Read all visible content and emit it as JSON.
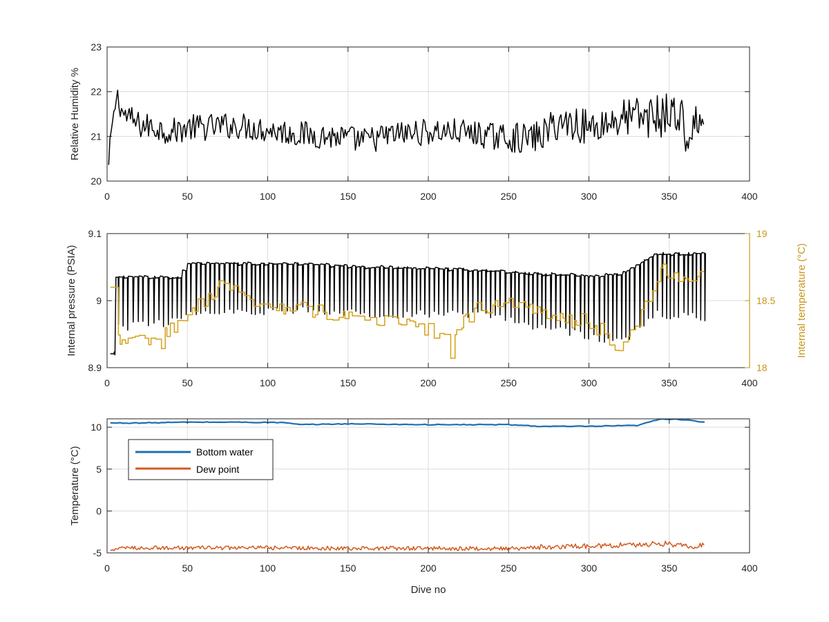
{
  "colors": {
    "black": "#000000",
    "internal_temperature": "#D4A017",
    "bottom_water": "#1F6FB0",
    "dew_point": "#D05A1E",
    "axis": "#262626",
    "grid": "#DCDCDC"
  },
  "chart_data": [
    {
      "type": "line",
      "ylabel": "Relative Humidity %",
      "xlabel": "",
      "xlim": [
        0,
        400
      ],
      "ylim": [
        20,
        23
      ],
      "xticks": [
        0,
        50,
        100,
        150,
        200,
        250,
        300,
        350,
        400
      ],
      "yticks": [
        20,
        21,
        22,
        23
      ],
      "grid": true,
      "series": [
        {
          "name": "",
          "color": "#000000",
          "style": "noisy",
          "x": [
            1,
            2,
            4,
            6,
            10,
            20,
            30,
            40,
            50,
            60,
            80,
            100,
            120,
            140,
            160,
            180,
            200,
            220,
            240,
            260,
            270,
            280,
            290,
            300,
            320,
            340,
            358,
            360,
            366,
            372
          ],
          "y": [
            20.35,
            21.0,
            21.4,
            21.95,
            21.5,
            21.25,
            21.2,
            21.1,
            21.2,
            21.2,
            21.25,
            21.15,
            21.05,
            21.0,
            20.9,
            21.05,
            21.1,
            21.1,
            21.0,
            20.95,
            21.0,
            21.3,
            21.3,
            21.2,
            21.4,
            21.45,
            21.5,
            20.7,
            21.3,
            21.3
          ],
          "noise_amplitude": [
            0.05,
            0.1,
            0.15,
            0.25,
            0.3,
            0.3,
            0.3,
            0.3,
            0.3,
            0.3,
            0.3,
            0.3,
            0.3,
            0.3,
            0.3,
            0.3,
            0.3,
            0.3,
            0.3,
            0.35,
            0.35,
            0.4,
            0.4,
            0.4,
            0.45,
            0.5,
            0.5,
            0.1,
            0.4,
            0.2
          ]
        }
      ]
    },
    {
      "type": "line",
      "ylabel": "Internal pressure (PSIA)",
      "y2label": "Internal temperature (°C)",
      "xlabel": "",
      "xlim": [
        0,
        400
      ],
      "ylim": [
        8.9,
        9.1
      ],
      "y2lim": [
        18,
        19
      ],
      "xticks": [
        0,
        50,
        100,
        150,
        200,
        250,
        300,
        350,
        400
      ],
      "yticks": [
        8.9,
        9,
        9.1
      ],
      "y2ticks": [
        18,
        18.5,
        19
      ],
      "grid": true,
      "series": [
        {
          "name": "",
          "axis": "left",
          "color": "#000000",
          "style": "sawtooth",
          "x": [
            2,
            5,
            45,
            50,
            115,
            165,
            240,
            260,
            280,
            300,
            320,
            340,
            372
          ],
          "y_top": [
            8.92,
            9.035,
            9.035,
            9.055,
            9.055,
            9.05,
            9.045,
            9.04,
            9.04,
            9.035,
            9.04,
            9.07,
            9.07
          ],
          "y_bottom": [
            8.92,
            8.96,
            8.97,
            8.985,
            8.985,
            8.98,
            8.98,
            8.965,
            8.955,
            8.945,
            8.94,
            8.98,
            8.975
          ]
        },
        {
          "name": "",
          "axis": "right",
          "color": "#D4A017",
          "style": "steps",
          "x": [
            2,
            4,
            6,
            20,
            30,
            40,
            48,
            70,
            90,
            110,
            140,
            180,
            205,
            212,
            214,
            230,
            250,
            270,
            290,
            305,
            312,
            320,
            335,
            345,
            355,
            370
          ],
          "y": [
            18.6,
            18.3,
            18.2,
            18.25,
            18.2,
            18.3,
            18.4,
            18.6,
            18.45,
            18.45,
            18.4,
            18.35,
            18.25,
            18.05,
            18.25,
            18.45,
            18.5,
            18.4,
            18.35,
            18.3,
            18.15,
            18.2,
            18.55,
            18.75,
            18.65,
            18.7
          ],
          "noise_amplitude": [
            0.0,
            0.02,
            0.06,
            0.06,
            0.06,
            0.06,
            0.05,
            0.06,
            0.05,
            0.05,
            0.05,
            0.05,
            0.05,
            0.08,
            0.05,
            0.05,
            0.05,
            0.06,
            0.06,
            0.06,
            0.05,
            0.05,
            0.05,
            0.05,
            0.05,
            0.05
          ]
        }
      ]
    },
    {
      "type": "line",
      "ylabel": "Temperature (°C)",
      "xlabel": "Dive no",
      "xlim": [
        0,
        400
      ],
      "ylim": [
        -5,
        11
      ],
      "xticks": [
        0,
        50,
        100,
        150,
        200,
        250,
        300,
        350,
        400
      ],
      "yticks": [
        -5,
        0,
        5,
        10
      ],
      "grid": true,
      "legend": "top-left",
      "series": [
        {
          "name": "Bottom water",
          "color": "#1F6FB0",
          "style": "smooth",
          "x": [
            2,
            20,
            50,
            80,
            110,
            120,
            150,
            200,
            250,
            270,
            300,
            330,
            345,
            360,
            372
          ],
          "y": [
            10.5,
            10.5,
            10.6,
            10.6,
            10.55,
            10.3,
            10.4,
            10.3,
            10.3,
            10.1,
            10.1,
            10.2,
            11.0,
            10.9,
            10.6
          ],
          "noise_amplitude": [
            0.05,
            0.05,
            0.05,
            0.05,
            0.05,
            0.05,
            0.05,
            0.05,
            0.05,
            0.05,
            0.05,
            0.05,
            0.05,
            0.05,
            0.05
          ]
        },
        {
          "name": "Dew point",
          "color": "#D05A1E",
          "style": "noisy",
          "x": [
            2,
            10,
            50,
            100,
            150,
            200,
            260,
            270,
            300,
            350,
            365,
            372
          ],
          "y": [
            -4.7,
            -4.4,
            -4.4,
            -4.4,
            -4.45,
            -4.45,
            -4.5,
            -4.3,
            -4.2,
            -3.9,
            -4.3,
            -3.9
          ],
          "noise_amplitude": [
            0.1,
            0.2,
            0.25,
            0.25,
            0.25,
            0.25,
            0.25,
            0.3,
            0.3,
            0.35,
            0.3,
            0.3
          ]
        }
      ]
    }
  ]
}
